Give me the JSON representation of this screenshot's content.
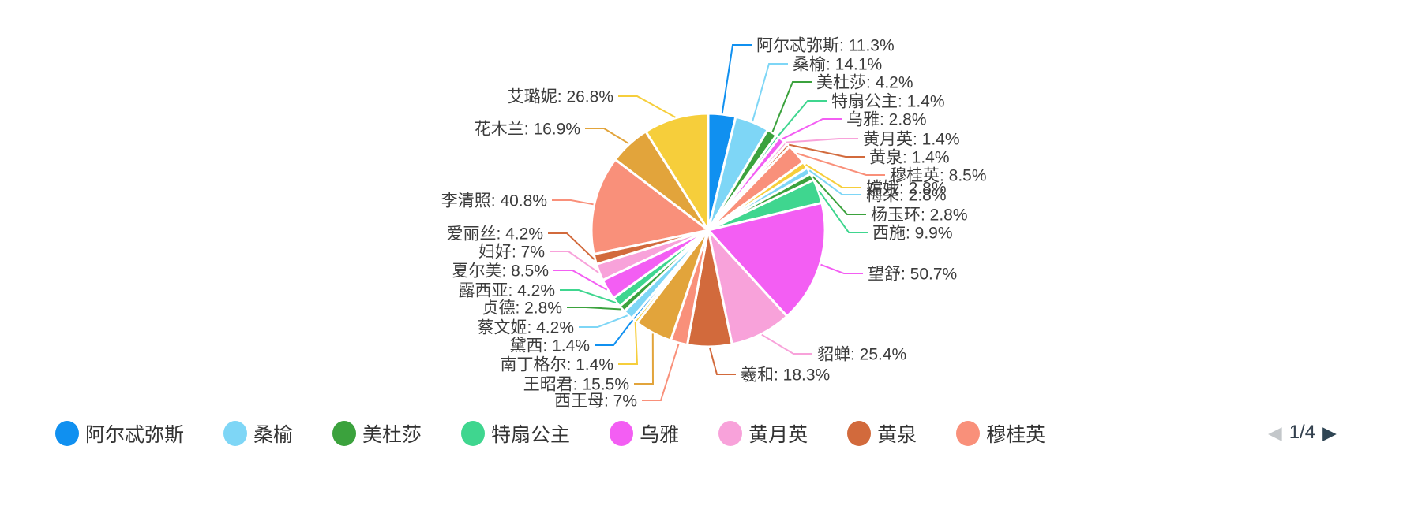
{
  "chart_data": {
    "type": "pie",
    "title": "",
    "legend_position": "bottom",
    "label_format": "name: value%",
    "items": [
      {
        "name": "阿尔忒弥斯",
        "value": 11.3,
        "label": "阿尔忒弥斯: 11.3%",
        "color": "#1090F0"
      },
      {
        "name": "桑榆",
        "value": 14.1,
        "label": "桑榆: 14.1%",
        "color": "#7ED6F6"
      },
      {
        "name": "美杜莎",
        "value": 4.2,
        "label": "美杜莎: 4.2%",
        "color": "#3BA23D"
      },
      {
        "name": "特扇公主",
        "value": 1.4,
        "label": "特扇公主: 1.4%",
        "color": "#3FD68F"
      },
      {
        "name": "乌雅",
        "value": 2.8,
        "label": "乌雅: 2.8%",
        "color": "#F35EF3"
      },
      {
        "name": "黄月英",
        "value": 1.4,
        "label": "黄月英: 1.4%",
        "color": "#F8A2DA"
      },
      {
        "name": "黄泉",
        "value": 1.4,
        "label": "黄泉: 1.4%",
        "color": "#D26A3C"
      },
      {
        "name": "穆桂英",
        "value": 8.5,
        "label": "穆桂英: 8.5%",
        "color": "#F9907A"
      },
      {
        "name": "嫦娥",
        "value": 2.8,
        "label": "嫦娥: 2.8%",
        "color": "#F6CE3B"
      },
      {
        "name": "梅朵",
        "value": 2.8,
        "label": "梅朵: 2.8%",
        "color": "#7ED6F6"
      },
      {
        "name": "杨玉环",
        "value": 2.8,
        "label": "杨玉环: 2.8%",
        "color": "#3BA23D"
      },
      {
        "name": "西施",
        "value": 9.9,
        "label": "西施: 9.9%",
        "color": "#3FD68F"
      },
      {
        "name": "望舒",
        "value": 50.7,
        "label": "望舒: 50.7%",
        "color": "#F35EF3"
      },
      {
        "name": "貂蝉",
        "value": 25.4,
        "label": "貂蝉: 25.4%",
        "color": "#F8A2DA"
      },
      {
        "name": "羲和",
        "value": 18.3,
        "label": "羲和: 18.3%",
        "color": "#D26A3C"
      },
      {
        "name": "西王母",
        "value": 7,
        "label": "西王母: 7%",
        "color": "#F9907A"
      },
      {
        "name": "王昭君",
        "value": 15.5,
        "label": "王昭君: 15.5%",
        "color": "#E2A43B"
      },
      {
        "name": "南丁格尔",
        "value": 1.4,
        "label": "南丁格尔: 1.4%",
        "color": "#F6CE3B"
      },
      {
        "name": "黛西",
        "value": 1.4,
        "label": "黛西: 1.4%",
        "color": "#1090F0"
      },
      {
        "name": "蔡文姬",
        "value": 4.2,
        "label": "蔡文姬: 4.2%",
        "color": "#7ED6F6"
      },
      {
        "name": "贞德",
        "value": 2.8,
        "label": "贞德: 2.8%",
        "color": "#3BA23D"
      },
      {
        "name": "露西亚",
        "value": 4.2,
        "label": "露西亚: 4.2%",
        "color": "#3FD68F"
      },
      {
        "name": "夏尔美",
        "value": 8.5,
        "label": "夏尔美: 8.5%",
        "color": "#F35EF3"
      },
      {
        "name": "妇好",
        "value": 7,
        "label": "妇好: 7%",
        "color": "#F8A2DA"
      },
      {
        "name": "爱丽丝",
        "value": 4.2,
        "label": "爱丽丝: 4.2%",
        "color": "#D26A3C"
      },
      {
        "name": "李清照",
        "value": 40.8,
        "label": "李清照: 40.8%",
        "color": "#F9907A"
      },
      {
        "name": "花木兰",
        "value": 16.9,
        "label": "花木兰: 16.9%",
        "color": "#E2A43B"
      },
      {
        "name": "艾璐妮",
        "value": 26.8,
        "label": "艾璐妮: 26.8%",
        "color": "#F6CE3B"
      }
    ]
  },
  "legend": {
    "visible_items": [
      "阿尔忒弥斯",
      "桑榆",
      "美杜莎",
      "特扇公主",
      "乌雅",
      "黄月英",
      "黄泉",
      "穆桂英"
    ],
    "pager": {
      "current_page": "1/4",
      "prev_icon": "◀",
      "next_icon": "▶"
    }
  }
}
